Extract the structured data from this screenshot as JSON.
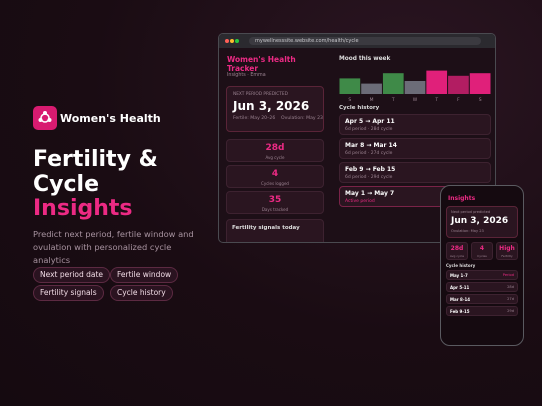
{
  "brand": {
    "name": "Women's Health"
  },
  "hero": {
    "title_line1": "Fertility &",
    "title_line2": "Cycle",
    "title_line3": "Insights",
    "subtitle": "Predict next period, fertile window and ovulation with personalized cycle analytics",
    "chips": [
      "Next period date",
      "Fertile window",
      "Fertility signals",
      "Cycle history"
    ]
  },
  "browser": {
    "url": "mywellnesssite.website.com/health/cycle",
    "sidebar": {
      "title": "Women's Health Tracker",
      "subtitle": "Insights · Emma",
      "next_label": "NEXT PERIOD PREDICTED",
      "next_date": "Jun 3, 2026",
      "fertile": "Fertile: May 20–26",
      "ovulation": "Ovulation: May 23",
      "stats": [
        {
          "value": "28d",
          "label": "Avg cycle"
        },
        {
          "value": "4",
          "label": "Cycles logged"
        },
        {
          "value": "35",
          "label": "Days tracked"
        }
      ],
      "signals_title": "Fertility signals today"
    },
    "mood": {
      "title": "Mood this week",
      "days": [
        "S",
        "M",
        "T",
        "W",
        "T",
        "F",
        "S"
      ],
      "values": [
        3,
        2,
        4,
        2.5,
        4.5,
        3.5,
        4
      ],
      "colors": [
        "#3f8a48",
        "#6c6c78",
        "#3f8a48",
        "#6c6c78",
        "#e0207a",
        "#b21d62",
        "#e0207a"
      ],
      "ylim": [
        0,
        5
      ]
    },
    "history": {
      "title": "Cycle history",
      "rows": [
        {
          "range": "Apr 5 → Apr 11",
          "detail": "6d period · 28d cycle"
        },
        {
          "range": "Mar 8 → Mar 14",
          "detail": "6d period · 27d cycle"
        },
        {
          "range": "Feb 9 → Feb 15",
          "detail": "6d period · 29d cycle"
        },
        {
          "range": "May 1 → May 7",
          "detail": "Active period"
        }
      ]
    }
  },
  "phone": {
    "title": "Insights",
    "next_label": "Next period predicted",
    "next_date": "Jun 3, 2026",
    "ovulation": "Ovulation: May 23",
    "stats": [
      {
        "value": "28d",
        "label": "Avg cycle"
      },
      {
        "value": "4",
        "label": "Cycles"
      },
      {
        "value": "High",
        "label": "Fertility"
      }
    ],
    "history_title": "Cycle history",
    "rows": [
      {
        "range": "May 1-7",
        "tag": "Period"
      },
      {
        "range": "Apr 5-11",
        "tag": "28d"
      },
      {
        "range": "Mar 8-14",
        "tag": "27d"
      },
      {
        "range": "Feb 9-15",
        "tag": "29d"
      }
    ]
  }
}
